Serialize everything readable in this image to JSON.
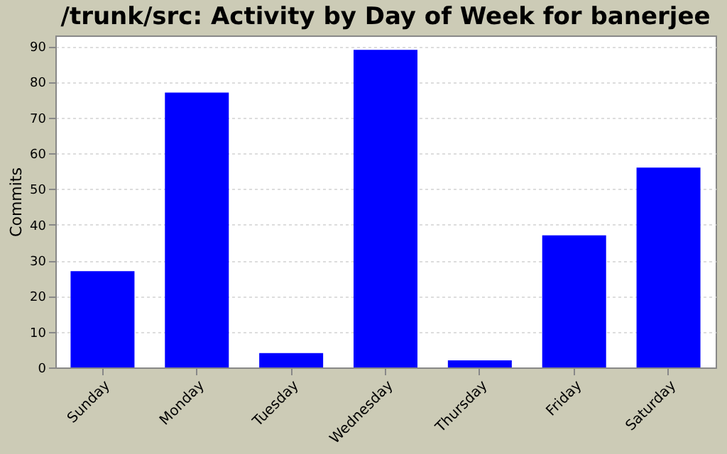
{
  "chart_data": {
    "type": "bar",
    "title": "/trunk/src: Activity by Day of Week for banerjee",
    "ylabel": "Commits",
    "categories": [
      "Sunday",
      "Monday",
      "Tuesday",
      "Wednesday",
      "Thursday",
      "Friday",
      "Saturday"
    ],
    "values": [
      27,
      77,
      4,
      89,
      2,
      37,
      56
    ],
    "color": "#0000ff",
    "ylim": [
      0,
      93
    ],
    "yticks": [
      0,
      10,
      20,
      30,
      40,
      50,
      60,
      70,
      80,
      90
    ],
    "grid": "y"
  }
}
